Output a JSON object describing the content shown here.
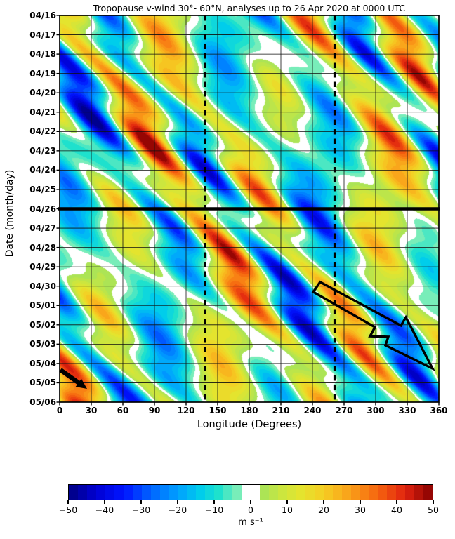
{
  "chart_data": {
    "type": "heatmap",
    "title": "Tropopause v-wind 30°- 60°N, analyses up to 26 Apr 2020 at 0000 UTC",
    "xlabel": "Longitude (Degrees)",
    "ylabel": "Date (month/day)",
    "x_ticks": [
      0,
      30,
      60,
      90,
      120,
      150,
      180,
      210,
      240,
      270,
      300,
      330,
      360
    ],
    "x_range_deg": [
      0,
      360
    ],
    "y_ticks": [
      "04/16",
      "04/17",
      "04/18",
      "04/19",
      "04/20",
      "04/21",
      "04/22",
      "04/23",
      "04/24",
      "04/25",
      "04/26",
      "04/27",
      "04/28",
      "04/29",
      "04/30",
      "05/01",
      "05/02",
      "05/03",
      "05/04",
      "05/05",
      "05/06"
    ],
    "y_span_days": 20,
    "grid": {
      "x_step_deg": 30,
      "y_step_days": 1
    },
    "colorbar": {
      "label": "m s⁻¹",
      "tick_values": [
        -50,
        -40,
        -30,
        -20,
        -10,
        0,
        10,
        20,
        30,
        40,
        50
      ],
      "tick_labels": [
        "−50",
        "−40",
        "−30",
        "−20",
        "−10",
        "0",
        "10",
        "20",
        "30",
        "40",
        "50"
      ],
      "value_range": [
        -50,
        50
      ],
      "step": 2.5,
      "white_band": [
        -2.5,
        2.5
      ],
      "stops": [
        [
          -50,
          "#000082"
        ],
        [
          -42.5,
          "#0000d2"
        ],
        [
          -35,
          "#0014ff"
        ],
        [
          -27.5,
          "#0064ff"
        ],
        [
          -20,
          "#00a0ff"
        ],
        [
          -13.75,
          "#00cdeb"
        ],
        [
          -8.75,
          "#1ee1cd"
        ],
        [
          -3.75,
          "#78edb9"
        ],
        [
          -1.25,
          "#ffffff"
        ],
        [
          1.25,
          "#ffffff"
        ],
        [
          3.75,
          "#ace455"
        ],
        [
          8.75,
          "#cce63e"
        ],
        [
          13.75,
          "#e4e42e"
        ],
        [
          20,
          "#f5cd23"
        ],
        [
          27.5,
          "#fa9e19"
        ],
        [
          35,
          "#f5640f"
        ],
        [
          42.5,
          "#e1230f"
        ],
        [
          50,
          "#870000"
        ]
      ]
    },
    "field_model": {
      "description": "Approximation of the plotted v-wind field: alternating positive/negative anomaly bands (±5 to ±45 m/s) tilted eastward with time, modeled as a sum of eastward-propagating waves with a slowly moving amplitude envelope",
      "scale": 0.92,
      "envelope": {
        "base": 0.72,
        "amplitude": 0.45,
        "wavelength_deg": 300,
        "speed_deg_per_day": 18,
        "phase_rad": 2.2
      },
      "waves": [
        {
          "amplitude": 27,
          "wavelength_deg": 75,
          "speed_deg_per_day": 12,
          "phase_rad": 0.9,
          "enveloped": true
        },
        {
          "amplitude": 12,
          "wavelength_deg": 48,
          "speed_deg_per_day": 23,
          "phase_rad": 4.4,
          "enveloped": true
        },
        {
          "amplitude": 13,
          "wavelength_deg": 120,
          "speed_deg_per_day": -4,
          "phase_rad": 2.4,
          "enveloped": false
        },
        {
          "amplitude": 7,
          "wavelength_deg": 200,
          "speed_deg_per_day": 6,
          "phase_rad": 5.5,
          "enveloped": false
        }
      ]
    },
    "annotations": {
      "analysis_time_line": {
        "type": "solid-hline",
        "date": "04/26",
        "day_offset": 10
      },
      "dashed_meridians": [
        {
          "type": "dashed-vline",
          "lon_deg": 138
        },
        {
          "type": "dashed-vline",
          "lon_deg": 261
        }
      ],
      "packet_arrow": {
        "type": "open-outline-arrow",
        "comment": "large hollow arrow with kinked shaft pointing down-right (eastward wave-packet propagation)",
        "outline_lon_day": [
          [
            247.3,
            13.79
          ],
          [
            240.7,
            14.3
          ],
          [
            299.3,
            16.12
          ],
          [
            294.7,
            16.59
          ],
          [
            312.0,
            16.62
          ],
          [
            309.3,
            17.06
          ],
          [
            354.0,
            18.26
          ],
          [
            328.7,
            15.61
          ],
          [
            324.0,
            16.04
          ]
        ]
      },
      "small_arrow": {
        "type": "filled-arrow",
        "from_lon_day": [
          0.7,
          18.33
        ],
        "to_lon_day": [
          26.0,
          19.31
        ]
      }
    }
  }
}
